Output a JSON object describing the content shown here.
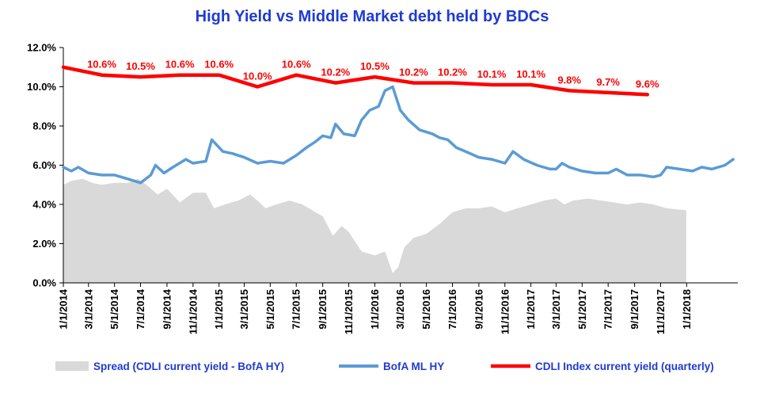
{
  "chart_data": {
    "type": "line",
    "title": "High Yield  vs  Middle Market debt held by BDCs",
    "xlabel": "",
    "ylabel": "",
    "ylim": [
      0,
      12
    ],
    "yticks": [
      "0.0%",
      "2.0%",
      "4.0%",
      "6.0%",
      "8.0%",
      "10.0%",
      "12.0%"
    ],
    "xlim": [
      "2014-01-01",
      "2018-05-01"
    ],
    "xticks": [
      "1/1/2014",
      "3/1/2014",
      "5/1/2014",
      "7/1/2014",
      "9/1/2014",
      "11/1/2014",
      "1/1/2015",
      "3/1/2015",
      "5/1/2015",
      "7/1/2015",
      "9/1/2015",
      "11/1/2015",
      "1/1/2016",
      "3/1/2016",
      "5/1/2016",
      "7/1/2016",
      "9/1/2016",
      "11/1/2016",
      "1/1/2017",
      "3/1/2017",
      "5/1/2017",
      "7/1/2017",
      "9/1/2017",
      "11/1/2017",
      "1/1/2018"
    ],
    "grid": false,
    "legend_position": "bottom",
    "colors": {
      "spread": "#d9d9d9",
      "bofa": "#5b9bd5",
      "cdli": "#ff0000",
      "title": "#1f3bd1"
    },
    "series": [
      {
        "name": "Spread (CDLI current yield - BofA HY)",
        "kind": "area",
        "points": [
          [
            "2014-01-01",
            5.0
          ],
          [
            "2014-01-20",
            5.2
          ],
          [
            "2014-02-15",
            5.3
          ],
          [
            "2014-03-10",
            5.1
          ],
          [
            "2014-04-01",
            5.0
          ],
          [
            "2014-05-01",
            5.1
          ],
          [
            "2014-06-01",
            5.1
          ],
          [
            "2014-06-25",
            5.3
          ],
          [
            "2014-07-15",
            5.0
          ],
          [
            "2014-08-10",
            4.5
          ],
          [
            "2014-09-01",
            4.8
          ],
          [
            "2014-10-01",
            4.1
          ],
          [
            "2014-11-01",
            4.6
          ],
          [
            "2014-12-01",
            4.6
          ],
          [
            "2014-12-20",
            3.8
          ],
          [
            "2015-01-15",
            4.0
          ],
          [
            "2015-02-15",
            4.2
          ],
          [
            "2015-03-15",
            4.5
          ],
          [
            "2015-04-01",
            4.2
          ],
          [
            "2015-04-20",
            3.8
          ],
          [
            "2015-05-15",
            4.0
          ],
          [
            "2015-06-15",
            4.2
          ],
          [
            "2015-07-15",
            4.0
          ],
          [
            "2015-08-15",
            3.6
          ],
          [
            "2015-09-01",
            3.4
          ],
          [
            "2015-09-25",
            2.4
          ],
          [
            "2015-10-15",
            2.9
          ],
          [
            "2015-11-01",
            2.6
          ],
          [
            "2015-12-01",
            1.6
          ],
          [
            "2016-01-01",
            1.4
          ],
          [
            "2016-01-25",
            1.6
          ],
          [
            "2016-02-12",
            0.5
          ],
          [
            "2016-02-25",
            0.8
          ],
          [
            "2016-03-10",
            1.8
          ],
          [
            "2016-04-01",
            2.3
          ],
          [
            "2016-05-01",
            2.5
          ],
          [
            "2016-06-01",
            3.0
          ],
          [
            "2016-07-01",
            3.6
          ],
          [
            "2016-08-01",
            3.8
          ],
          [
            "2016-09-01",
            3.8
          ],
          [
            "2016-10-01",
            3.9
          ],
          [
            "2016-11-01",
            3.6
          ],
          [
            "2016-12-01",
            3.8
          ],
          [
            "2017-01-01",
            4.0
          ],
          [
            "2017-02-01",
            4.2
          ],
          [
            "2017-03-01",
            4.3
          ],
          [
            "2017-03-20",
            4.0
          ],
          [
            "2017-04-10",
            4.2
          ],
          [
            "2017-05-15",
            4.3
          ],
          [
            "2017-06-15",
            4.2
          ],
          [
            "2017-07-15",
            4.1
          ],
          [
            "2017-08-15",
            4.0
          ],
          [
            "2017-09-15",
            4.1
          ],
          [
            "2017-10-15",
            4.0
          ],
          [
            "2017-11-15",
            3.8
          ],
          [
            "2017-12-31",
            3.7
          ]
        ]
      },
      {
        "name": "BofA ML HY",
        "kind": "line",
        "points": [
          [
            "2014-01-01",
            5.9
          ],
          [
            "2014-01-20",
            5.7
          ],
          [
            "2014-02-05",
            5.9
          ],
          [
            "2014-03-01",
            5.6
          ],
          [
            "2014-04-01",
            5.5
          ],
          [
            "2014-05-01",
            5.5
          ],
          [
            "2014-06-01",
            5.3
          ],
          [
            "2014-07-01",
            5.1
          ],
          [
            "2014-07-25",
            5.5
          ],
          [
            "2014-08-05",
            6.0
          ],
          [
            "2014-08-25",
            5.6
          ],
          [
            "2014-09-15",
            5.9
          ],
          [
            "2014-10-15",
            6.3
          ],
          [
            "2014-11-01",
            6.1
          ],
          [
            "2014-12-01",
            6.2
          ],
          [
            "2014-12-15",
            7.3
          ],
          [
            "2015-01-10",
            6.7
          ],
          [
            "2015-02-01",
            6.6
          ],
          [
            "2015-03-01",
            6.4
          ],
          [
            "2015-04-01",
            6.1
          ],
          [
            "2015-05-01",
            6.2
          ],
          [
            "2015-06-01",
            6.1
          ],
          [
            "2015-07-01",
            6.5
          ],
          [
            "2015-07-25",
            6.9
          ],
          [
            "2015-08-15",
            7.2
          ],
          [
            "2015-09-01",
            7.5
          ],
          [
            "2015-09-20",
            7.4
          ],
          [
            "2015-10-01",
            8.1
          ],
          [
            "2015-10-20",
            7.6
          ],
          [
            "2015-11-15",
            7.5
          ],
          [
            "2015-12-01",
            8.3
          ],
          [
            "2015-12-20",
            8.8
          ],
          [
            "2016-01-10",
            9.0
          ],
          [
            "2016-01-25",
            9.8
          ],
          [
            "2016-02-12",
            10.0
          ],
          [
            "2016-03-01",
            8.8
          ],
          [
            "2016-03-20",
            8.3
          ],
          [
            "2016-04-15",
            7.8
          ],
          [
            "2016-05-15",
            7.6
          ],
          [
            "2016-06-01",
            7.4
          ],
          [
            "2016-06-20",
            7.3
          ],
          [
            "2016-07-10",
            6.9
          ],
          [
            "2016-08-01",
            6.7
          ],
          [
            "2016-09-01",
            6.4
          ],
          [
            "2016-10-01",
            6.3
          ],
          [
            "2016-11-01",
            6.1
          ],
          [
            "2016-11-20",
            6.7
          ],
          [
            "2016-12-15",
            6.3
          ],
          [
            "2017-01-15",
            6.0
          ],
          [
            "2017-02-15",
            5.8
          ],
          [
            "2017-03-01",
            5.8
          ],
          [
            "2017-03-15",
            6.1
          ],
          [
            "2017-04-01",
            5.9
          ],
          [
            "2017-05-01",
            5.7
          ],
          [
            "2017-06-01",
            5.6
          ],
          [
            "2017-07-01",
            5.6
          ],
          [
            "2017-07-20",
            5.8
          ],
          [
            "2017-08-15",
            5.5
          ],
          [
            "2017-09-15",
            5.5
          ],
          [
            "2017-10-15",
            5.4
          ],
          [
            "2017-11-01",
            5.5
          ],
          [
            "2017-11-15",
            5.9
          ],
          [
            "2017-12-15",
            5.8
          ],
          [
            "2018-01-15",
            5.7
          ],
          [
            "2018-02-05",
            5.9
          ],
          [
            "2018-03-01",
            5.8
          ],
          [
            "2018-04-01",
            6.0
          ],
          [
            "2018-04-20",
            6.3
          ]
        ]
      },
      {
        "name": "CDLI Index current yield (quarterly)",
        "kind": "line",
        "points": [
          [
            "2014-01-01",
            11.0
          ],
          [
            "2014-04-01",
            10.6
          ],
          [
            "2014-07-01",
            10.5
          ],
          [
            "2014-10-01",
            10.6
          ],
          [
            "2015-01-01",
            10.6
          ],
          [
            "2015-04-01",
            10.0
          ],
          [
            "2015-07-01",
            10.6
          ],
          [
            "2015-10-01",
            10.2
          ],
          [
            "2016-01-01",
            10.5
          ],
          [
            "2016-04-01",
            10.2
          ],
          [
            "2016-07-01",
            10.2
          ],
          [
            "2016-10-01",
            10.1
          ],
          [
            "2017-01-01",
            10.1
          ],
          [
            "2017-04-01",
            9.8
          ],
          [
            "2017-07-01",
            9.7
          ],
          [
            "2017-10-01",
            9.6
          ]
        ]
      }
    ],
    "data_labels": [
      {
        "date": "2014-04-01",
        "value": 10.6,
        "text": "10.6%"
      },
      {
        "date": "2014-07-01",
        "value": 10.5,
        "text": "10.5%"
      },
      {
        "date": "2014-10-01",
        "value": 10.6,
        "text": "10.6%"
      },
      {
        "date": "2015-01-01",
        "value": 10.6,
        "text": "10.6%"
      },
      {
        "date": "2015-04-01",
        "value": 10.0,
        "text": "10.0%"
      },
      {
        "date": "2015-07-01",
        "value": 10.6,
        "text": "10.6%"
      },
      {
        "date": "2015-10-01",
        "value": 10.2,
        "text": "10.2%"
      },
      {
        "date": "2016-01-01",
        "value": 10.5,
        "text": "10.5%"
      },
      {
        "date": "2016-04-01",
        "value": 10.2,
        "text": "10.2%"
      },
      {
        "date": "2016-07-01",
        "value": 10.2,
        "text": "10.2%"
      },
      {
        "date": "2016-10-01",
        "value": 10.1,
        "text": "10.1%"
      },
      {
        "date": "2017-01-01",
        "value": 10.1,
        "text": "10.1%"
      },
      {
        "date": "2017-04-01",
        "value": 9.8,
        "text": "9.8%"
      },
      {
        "date": "2017-07-01",
        "value": 9.7,
        "text": "9.7%"
      },
      {
        "date": "2017-10-01",
        "value": 9.6,
        "text": "9.6%"
      }
    ]
  }
}
